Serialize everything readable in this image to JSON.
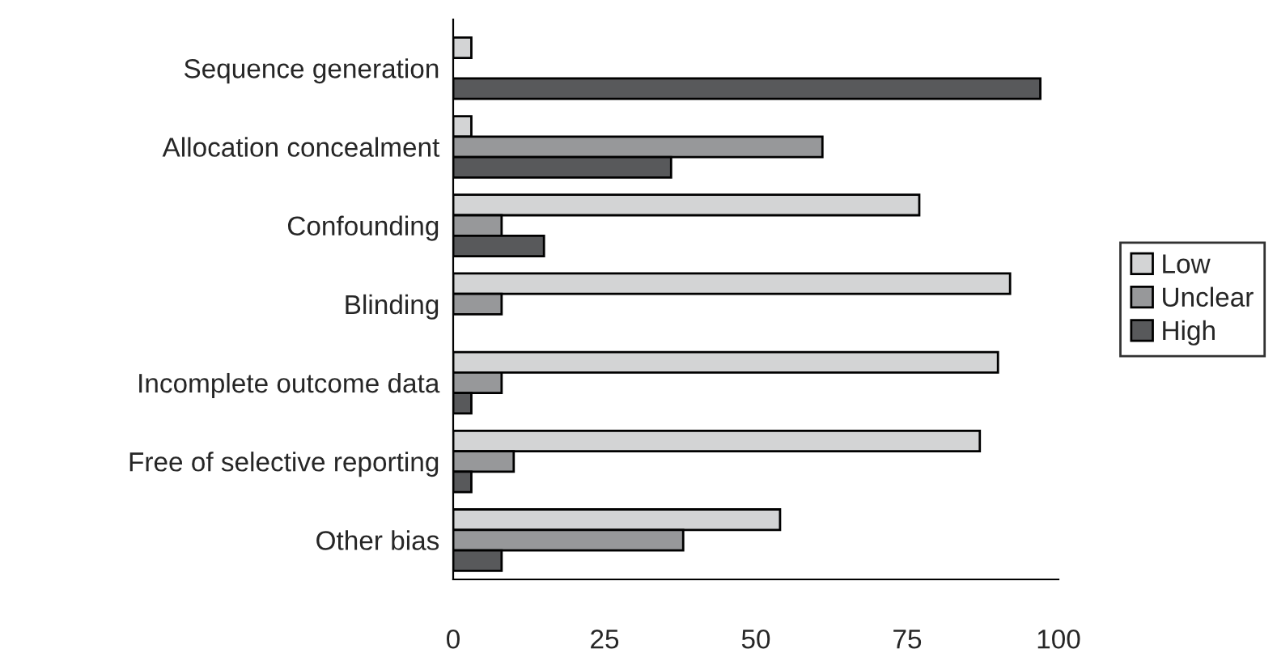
{
  "chart_data": {
    "type": "bar",
    "orientation": "horizontal",
    "categories": [
      "Sequence generation",
      "Allocation concealment",
      "Confounding",
      "Blinding",
      "Incomplete outcome data",
      "Free of selective reporting",
      "Other bias"
    ],
    "series": [
      {
        "name": "Low",
        "color": "#d3d4d5",
        "values": [
          3,
          3,
          77,
          92,
          90,
          87,
          54
        ]
      },
      {
        "name": "Unclear",
        "color": "#97989a",
        "values": [
          null,
          61,
          8,
          8,
          8,
          10,
          38
        ]
      },
      {
        "name": "High",
        "color": "#58595b",
        "values": [
          97,
          36,
          15,
          null,
          3,
          3,
          8
        ]
      }
    ],
    "xlim": [
      0,
      100
    ],
    "xticks": [
      0,
      25,
      50,
      75,
      100
    ],
    "grid": false,
    "legend": "right"
  }
}
